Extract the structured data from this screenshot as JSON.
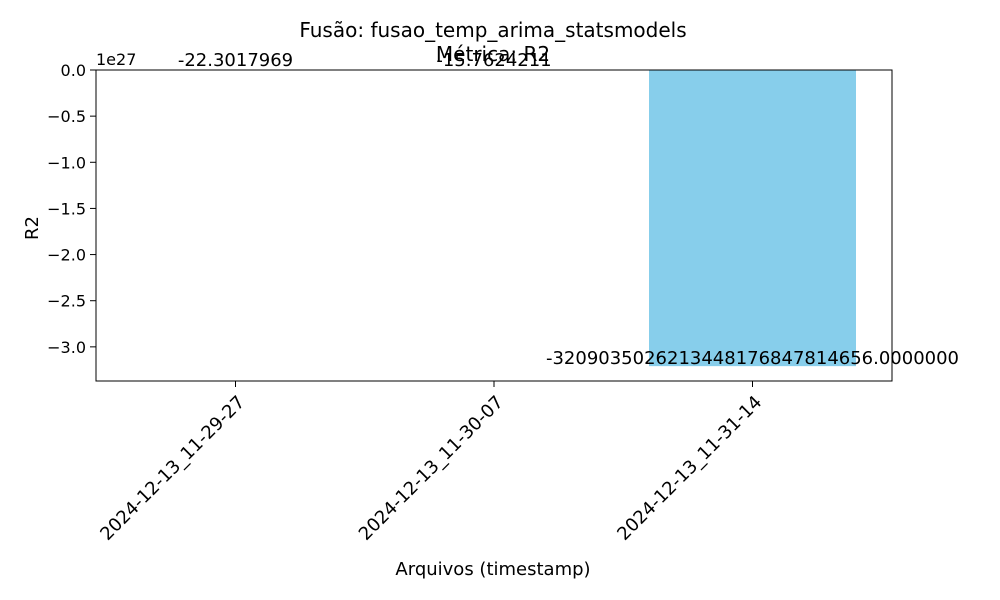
{
  "chart_data": {
    "type": "bar",
    "title": "Fusão: fusao_temp_arima_statsmodels",
    "subtitle": "Métrica: R2",
    "xlabel": "Arquivos (timestamp)",
    "ylabel": "R2",
    "offset_label": "1e27",
    "categories": [
      "2024-12-13_11-29-27",
      "2024-12-13_11-30-07",
      "2024-12-13_11-31-14"
    ],
    "values": [
      -22.3017969,
      -15.7624211,
      -3.209035026213448e+27
    ],
    "value_labels": [
      "-22.3017969",
      "-15.7624211",
      "-3209035026213448176847814656.0000000"
    ],
    "yticks": [
      0.0,
      -0.5,
      -1.0,
      -1.5,
      -2.0,
      -2.5,
      -3.0
    ],
    "ytick_labels": [
      "0.0",
      "−0.5",
      "−1.0",
      "−1.5",
      "−2.0",
      "−2.5",
      "−3.0"
    ],
    "ylim": [
      -3.37e+27,
      0
    ],
    "bar_color": "#87ceeb",
    "grid": false,
    "legend": "none"
  }
}
